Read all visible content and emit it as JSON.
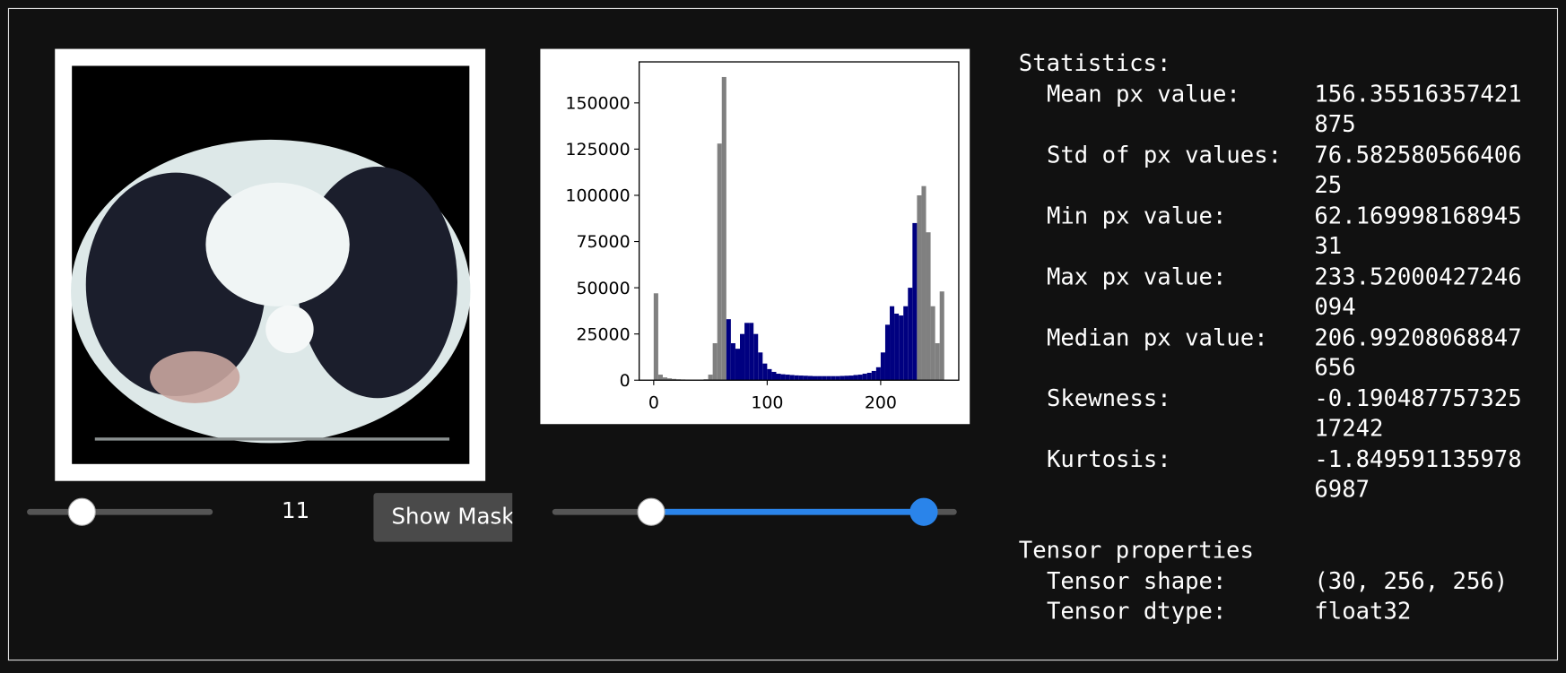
{
  "slice_value": "11",
  "button": "Show Mask",
  "histogram": {
    "type": "histogram",
    "bins": [
      0,
      4,
      8,
      12,
      16,
      20,
      24,
      28,
      32,
      36,
      40,
      44,
      48,
      52,
      56,
      60,
      64,
      68,
      72,
      76,
      80,
      84,
      88,
      92,
      96,
      100,
      104,
      108,
      112,
      116,
      120,
      124,
      128,
      132,
      136,
      140,
      144,
      148,
      152,
      156,
      160,
      164,
      168,
      172,
      176,
      180,
      184,
      188,
      192,
      196,
      200,
      204,
      208,
      212,
      216,
      220,
      224,
      228,
      232,
      236,
      240,
      244,
      248,
      252,
      256
    ],
    "counts": [
      47000,
      3000,
      1500,
      1000,
      700,
      500,
      400,
      300,
      200,
      200,
      200,
      500,
      3000,
      20000,
      128000,
      164000,
      33000,
      20000,
      17000,
      25000,
      31000,
      31000,
      25000,
      15000,
      9000,
      6000,
      4500,
      3500,
      3200,
      3000,
      2800,
      2600,
      2500,
      2400,
      2300,
      2200,
      2200,
      2200,
      2200,
      2200,
      2200,
      2300,
      2400,
      2500,
      2800,
      3000,
      3500,
      4000,
      5000,
      7000,
      15000,
      30000,
      40000,
      36000,
      35000,
      40000,
      50000,
      85000,
      100000,
      105000,
      80000,
      40000,
      20000,
      48000
    ],
    "color": "#808080",
    "highlight_color": "#000080",
    "xlim": [
      -12.8,
      268.8
    ],
    "xticks": [
      0,
      100,
      200
    ],
    "ylim": [
      0,
      172200
    ],
    "yticks": [
      0,
      25000,
      50000,
      75000,
      100000,
      125000,
      150000
    ]
  },
  "statistics": {
    "title": "Statistics:",
    "rows": [
      {
        "label": "Mean px value:",
        "value": "156.35516357421875"
      },
      {
        "label": "Std of px values:",
        "value": "76.58258056640625"
      },
      {
        "label": "Min px value:",
        "value": "62.16999816894531"
      },
      {
        "label": "Max px value:",
        "value": "233.52000427246094"
      },
      {
        "label": "Median px value:",
        "value": "206.99208068847656"
      },
      {
        "label": "Skewness:",
        "value": "-0.19048775732517242"
      },
      {
        "label": "Kurtosis:",
        "value": "-1.8495911359786987"
      }
    ]
  },
  "tensor": {
    "title": "Tensor properties",
    "rows": [
      {
        "label": "Tensor shape:",
        "value": "(30, 256, 256)"
      },
      {
        "label": "Tensor dtype:",
        "value": "float32"
      }
    ]
  }
}
